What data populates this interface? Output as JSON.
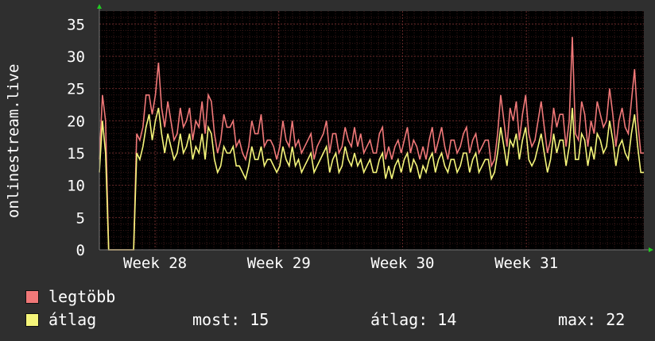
{
  "chart_data": {
    "type": "line",
    "ylabel": "onlinestream.live",
    "xlabel": "",
    "ylim": [
      0,
      37
    ],
    "y_ticks": [
      0,
      5,
      10,
      15,
      20,
      25,
      30,
      35
    ],
    "x_tick_labels": [
      "Week 28",
      "Week 29",
      "Week 30",
      "Week 31"
    ],
    "grid": true,
    "series": [
      {
        "name": "legtöbb",
        "color": "#f07878",
        "values": [
          14,
          24,
          20,
          0,
          0,
          0,
          0,
          0,
          0,
          0,
          0,
          0,
          18,
          17,
          19,
          24,
          24,
          21,
          24,
          29,
          22,
          19,
          23,
          20,
          17,
          18,
          22,
          19,
          20,
          22,
          17,
          20,
          19,
          23,
          18,
          24,
          23,
          18,
          15,
          17,
          21,
          19,
          19,
          20,
          16,
          17,
          15,
          14,
          16,
          20,
          18,
          18,
          21,
          16,
          17,
          17,
          16,
          14,
          16,
          20,
          17,
          16,
          20,
          16,
          17,
          15,
          16,
          17,
          18,
          14,
          16,
          17,
          18,
          20,
          15,
          18,
          18,
          15,
          16,
          19,
          17,
          16,
          19,
          16,
          18,
          15,
          16,
          17,
          15,
          15,
          18,
          19,
          14,
          16,
          14,
          16,
          17,
          15,
          17,
          19,
          15,
          17,
          16,
          14,
          16,
          14,
          17,
          19,
          15,
          17,
          19,
          16,
          14,
          17,
          17,
          15,
          16,
          18,
          19,
          15,
          17,
          18,
          15,
          16,
          17,
          17,
          13,
          14,
          18,
          24,
          20,
          16,
          22,
          20,
          23,
          17,
          21,
          24,
          18,
          16,
          17,
          20,
          23,
          19,
          15,
          17,
          22,
          19,
          21,
          21,
          16,
          20,
          33,
          18,
          17,
          23,
          21,
          16,
          20,
          18,
          23,
          21,
          19,
          20,
          25,
          21,
          16,
          20,
          22,
          19,
          18,
          23,
          28,
          20,
          15,
          15
        ]
      },
      {
        "name": "átlag",
        "color": "#f5f57a",
        "values": [
          12,
          20,
          15,
          0,
          0,
          0,
          0,
          0,
          0,
          0,
          0,
          0,
          15,
          14,
          16,
          19,
          21,
          17,
          20,
          22,
          18,
          15,
          18,
          16,
          14,
          15,
          18,
          15,
          16,
          18,
          14,
          16,
          15,
          18,
          14,
          19,
          18,
          14,
          12,
          13,
          16,
          15,
          15,
          16,
          13,
          13,
          12,
          11,
          13,
          16,
          14,
          14,
          16,
          13,
          14,
          14,
          13,
          12,
          13,
          16,
          14,
          13,
          16,
          13,
          14,
          12,
          13,
          14,
          15,
          12,
          13,
          14,
          15,
          16,
          12,
          14,
          15,
          12,
          13,
          16,
          14,
          13,
          15,
          13,
          14,
          12,
          13,
          14,
          12,
          12,
          14,
          15,
          11,
          13,
          11,
          13,
          14,
          12,
          14,
          15,
          12,
          14,
          13,
          11,
          13,
          12,
          14,
          15,
          12,
          14,
          15,
          13,
          12,
          14,
          14,
          12,
          13,
          15,
          15,
          12,
          14,
          15,
          12,
          13,
          14,
          14,
          11,
          12,
          15,
          19,
          16,
          13,
          17,
          16,
          18,
          14,
          17,
          19,
          14,
          13,
          14,
          16,
          18,
          15,
          12,
          14,
          18,
          15,
          17,
          17,
          13,
          16,
          22,
          14,
          14,
          18,
          17,
          13,
          16,
          14,
          18,
          17,
          15,
          16,
          20,
          17,
          13,
          16,
          17,
          15,
          14,
          18,
          21,
          16,
          12,
          12
        ]
      }
    ]
  },
  "legend": {
    "max_label": "legtöbb",
    "avg_label": "átlag",
    "now_label": "most:",
    "now_value": "15",
    "avg_stat_label": "átlag:",
    "avg_stat_value": "14",
    "max_stat_label": "max:",
    "max_stat_value": "22"
  },
  "colors": {
    "background": "#2f2f2f",
    "plot_background": "#000000",
    "grid": "#6a2a2a",
    "axis": "#777777"
  }
}
